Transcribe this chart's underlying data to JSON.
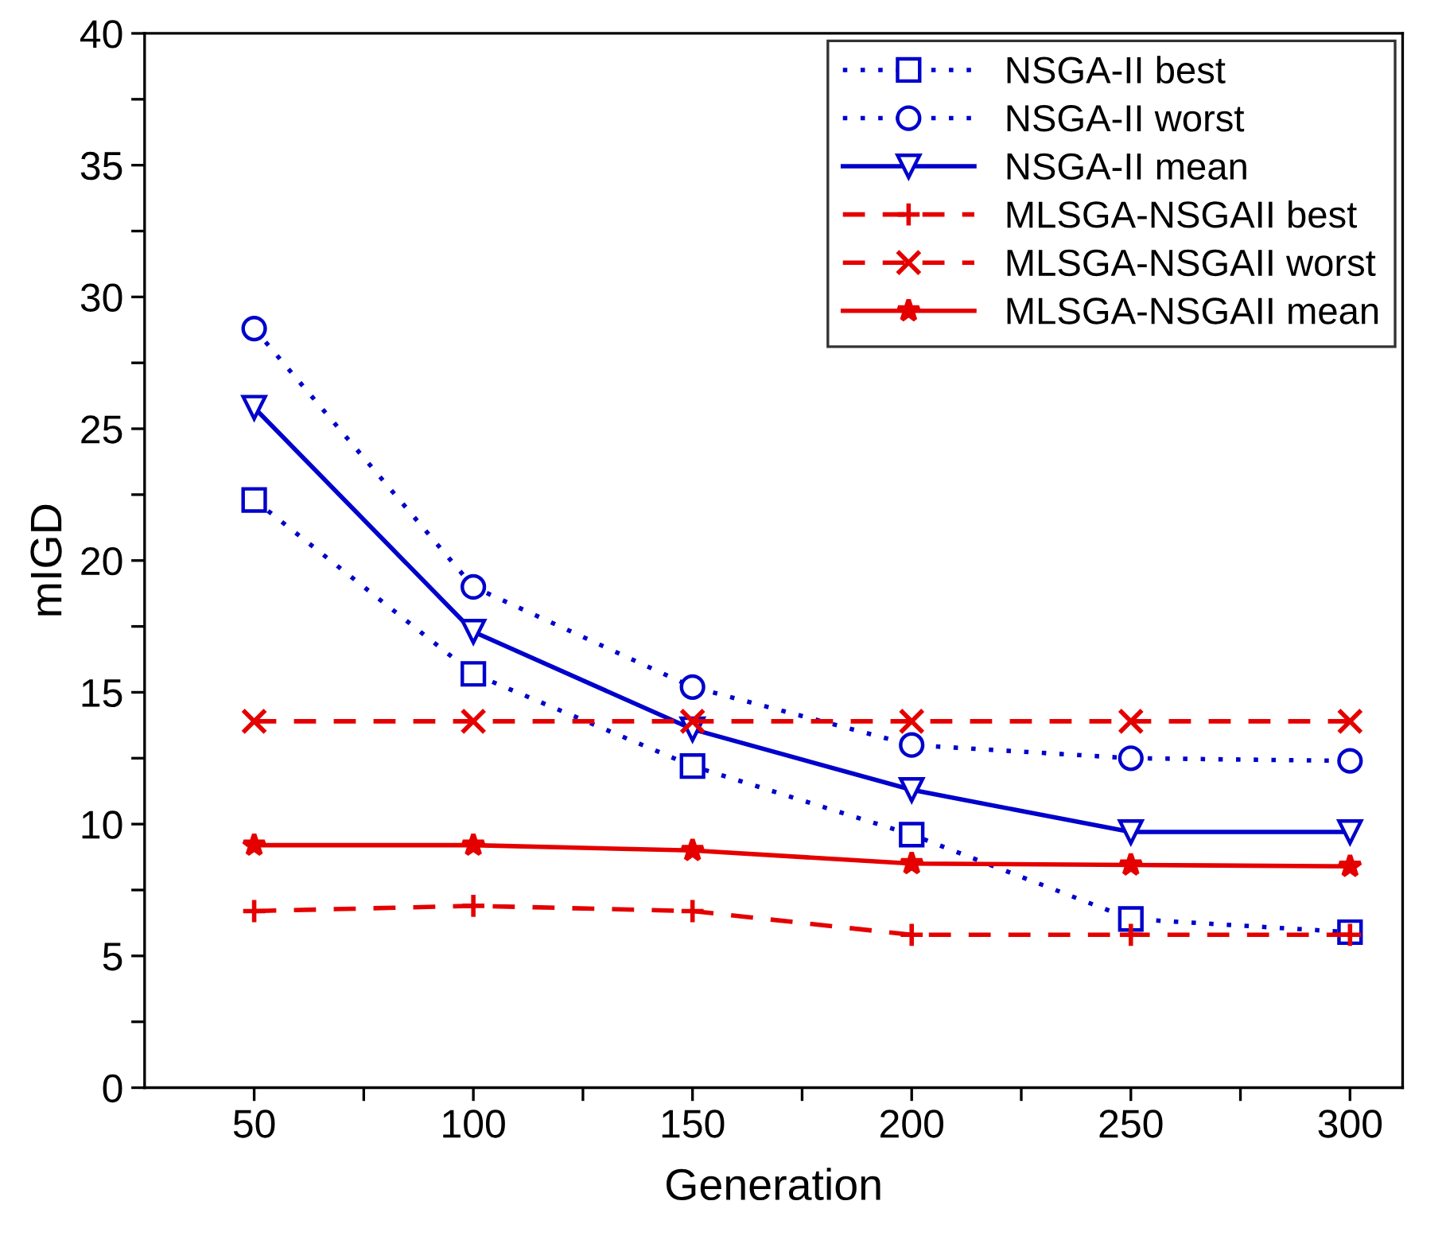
{
  "chart_data": {
    "type": "line",
    "xlabel": "Generation",
    "ylabel": "mIGD",
    "x": [
      50,
      100,
      150,
      200,
      250,
      300
    ],
    "series": [
      {
        "name": "NSGA-II best",
        "color": "#0000cc",
        "marker": "square",
        "line_style": "dotted",
        "values": [
          22.3,
          15.7,
          12.2,
          9.6,
          6.4,
          5.9
        ]
      },
      {
        "name": "NSGA-II worst",
        "color": "#0000cc",
        "marker": "circle",
        "line_style": "dotted",
        "values": [
          28.8,
          19.0,
          15.2,
          13.0,
          12.5,
          12.4
        ]
      },
      {
        "name": "NSGA-II mean",
        "color": "#0000cc",
        "marker": "triangle",
        "line_style": "solid",
        "values": [
          25.8,
          17.3,
          13.6,
          11.3,
          9.7,
          9.7
        ]
      },
      {
        "name": "MLSGA-NSGAII best",
        "color": "#e50000",
        "marker": "plus",
        "line_style": "dashed",
        "values": [
          6.7,
          6.9,
          6.7,
          5.8,
          5.8,
          5.8
        ]
      },
      {
        "name": "MLSGA-NSGAII worst",
        "color": "#e50000",
        "marker": "cross",
        "line_style": "dashed",
        "values": [
          13.9,
          13.9,
          13.9,
          13.9,
          13.9,
          13.9
        ]
      },
      {
        "name": "MLSGA-NSGAII mean",
        "color": "#e50000",
        "marker": "star",
        "line_style": "solid",
        "values": [
          9.2,
          9.2,
          9.0,
          8.5,
          8.45,
          8.4
        ]
      }
    ],
    "xlim": [
      25,
      312
    ],
    "xticks": [
      50,
      {
        "value": 75,
        "label": null
      },
      100,
      {
        "value": 125,
        "label": null
      },
      150,
      {
        "value": 175,
        "label": null
      },
      200,
      {
        "value": 225,
        "label": null
      },
      250,
      {
        "value": 275,
        "label": null
      },
      300
    ],
    "ylim": [
      0,
      40
    ],
    "yticks": [
      0,
      {
        "value": 2.5,
        "label": null
      },
      5,
      {
        "value": 7.5,
        "label": null
      },
      10,
      {
        "value": 12.5,
        "label": null
      },
      15,
      {
        "value": 17.5,
        "label": null
      },
      20,
      {
        "value": 22.5,
        "label": null
      },
      25,
      {
        "value": 27.5,
        "label": null
      },
      30,
      {
        "value": 32.5,
        "label": null
      },
      35,
      {
        "value": 37.5,
        "label": null
      },
      40
    ],
    "grid": false,
    "legend": "top right"
  }
}
